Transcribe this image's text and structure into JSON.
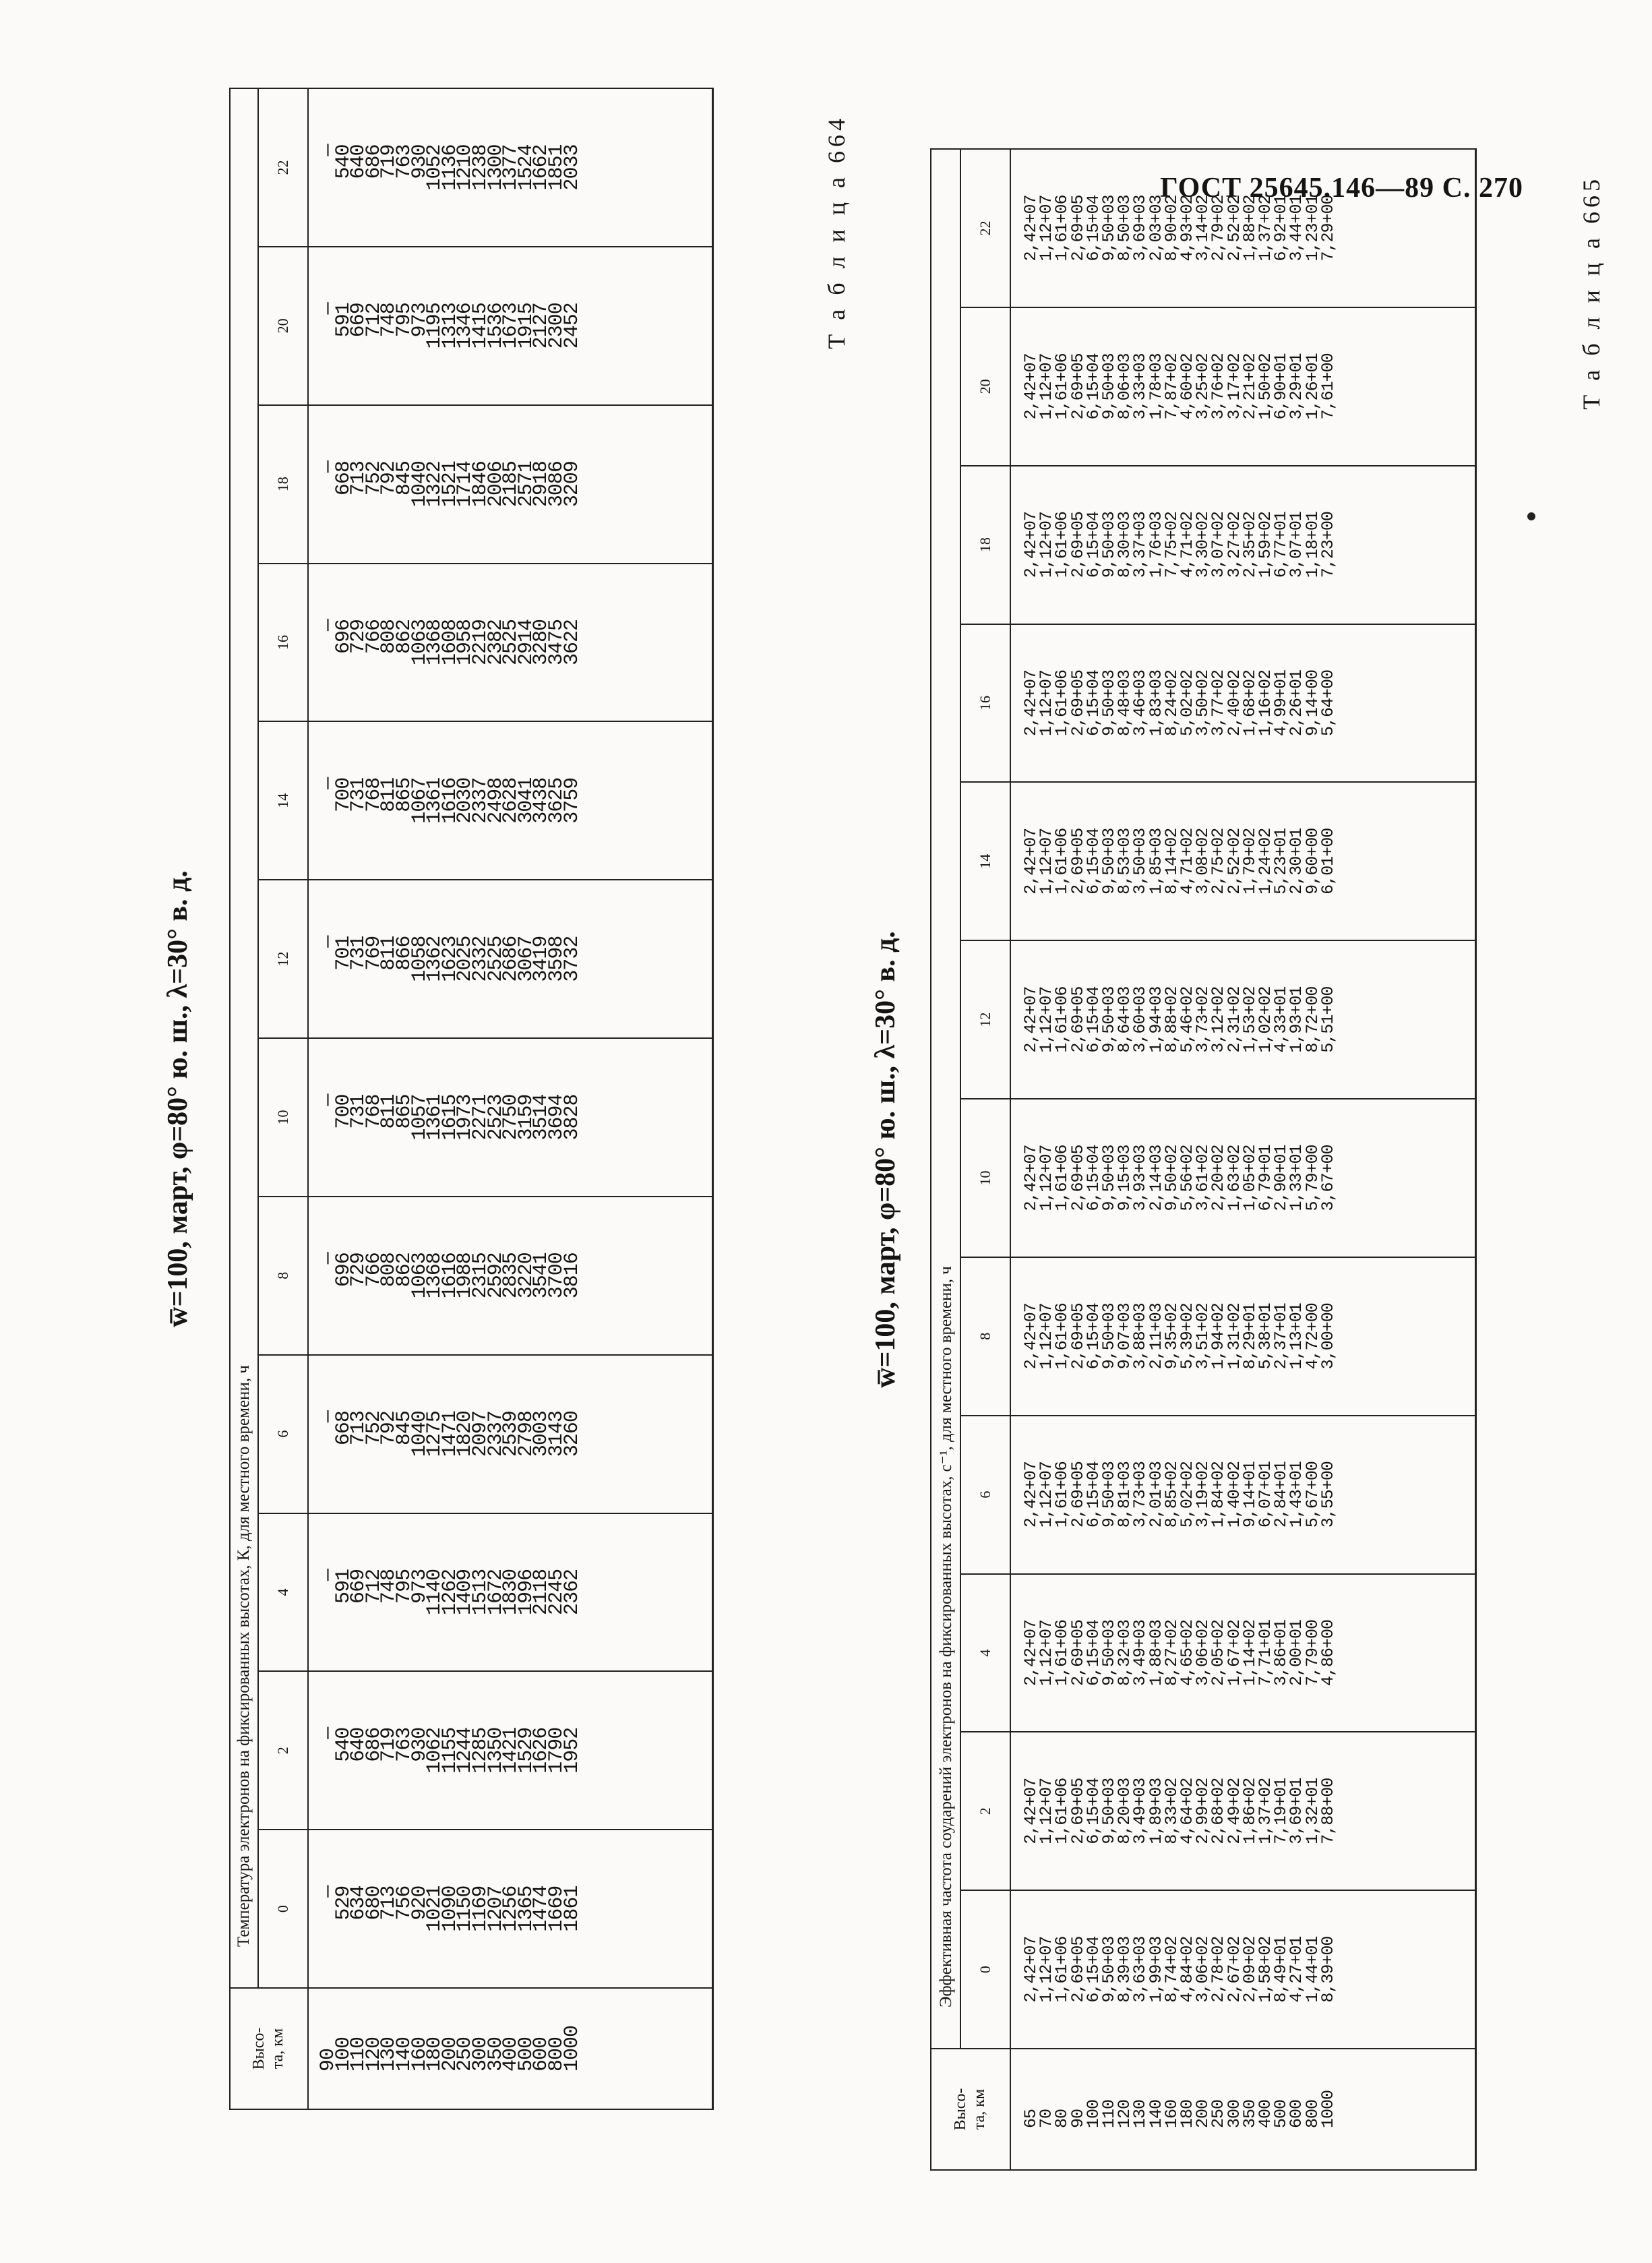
{
  "header": "ГОСТ 25645.146—89 С. 270",
  "table1": {
    "label": "Т а б л и ц а 664",
    "title": "w̅=100, март, φ=80° ю. ш., λ=30° в. д.",
    "alt_header": "Высо-\nта, км",
    "span_header": "Температура электронов на фиксированных высотах, К, для местного времени, ч",
    "hours": [
      "0",
      "2",
      "4",
      "6",
      "8",
      "10",
      "12",
      "14",
      "16",
      "18",
      "20",
      "22"
    ],
    "altitudes": [
      "90",
      "100",
      "110",
      "120",
      "130",
      "140",
      "160",
      "180",
      "200",
      "250",
      "300",
      "350",
      "400",
      "500",
      "600",
      "800",
      "1000"
    ],
    "columns": [
      [
        "—",
        "529",
        "634",
        "680",
        "713",
        "756",
        "920",
        "1021",
        "1090",
        "1150",
        "1169",
        "1207",
        "1256",
        "1365",
        "1474",
        "1669",
        "1861"
      ],
      [
        "—",
        "540",
        "640",
        "686",
        "719",
        "763",
        "930",
        "1062",
        "1155",
        "1244",
        "1285",
        "1350",
        "1421",
        "1529",
        "1626",
        "1790",
        "1952"
      ],
      [
        "—",
        "591",
        "669",
        "712",
        "748",
        "795",
        "973",
        "1140",
        "1262",
        "1409",
        "1513",
        "1672",
        "1830",
        "1996",
        "2118",
        "2245",
        "2362"
      ],
      [
        "—",
        "668",
        "713",
        "752",
        "792",
        "845",
        "1040",
        "1275",
        "1471",
        "1820",
        "2097",
        "2337",
        "2539",
        "2798",
        "3003",
        "3143",
        "3260"
      ],
      [
        "—",
        "696",
        "729",
        "766",
        "808",
        "862",
        "1063",
        "1368",
        "1616",
        "1988",
        "2315",
        "2592",
        "2835",
        "3220",
        "3541",
        "3700",
        "3816"
      ],
      [
        "—",
        "700",
        "731",
        "768",
        "811",
        "865",
        "1057",
        "1361",
        "1615",
        "1973",
        "2271",
        "2523",
        "2750",
        "3159",
        "3514",
        "3694",
        "3828"
      ],
      [
        "—",
        "701",
        "731",
        "769",
        "811",
        "866",
        "1058",
        "1362",
        "1623",
        "2025",
        "2332",
        "2525",
        "2686",
        "3067",
        "3419",
        "3598",
        "3732"
      ],
      [
        "—",
        "700",
        "731",
        "768",
        "811",
        "865",
        "1067",
        "1361",
        "1616",
        "2030",
        "2337",
        "2498",
        "2628",
        "3041",
        "3438",
        "3625",
        "3759"
      ],
      [
        "—",
        "696",
        "729",
        "766",
        "808",
        "862",
        "1063",
        "1368",
        "1608",
        "1958",
        "2219",
        "2382",
        "2525",
        "2914",
        "3280",
        "3475",
        "3622"
      ],
      [
        "—",
        "668",
        "713",
        "752",
        "792",
        "845",
        "1040",
        "1322",
        "1521",
        "1714",
        "1846",
        "2006",
        "2185",
        "2571",
        "2918",
        "3086",
        "3209"
      ],
      [
        "—",
        "591",
        "669",
        "712",
        "748",
        "795",
        "973",
        "1195",
        "1313",
        "1346",
        "1415",
        "1536",
        "1673",
        "1915",
        "2127",
        "2300",
        "2452"
      ],
      [
        "—",
        "540",
        "640",
        "686",
        "719",
        "763",
        "930",
        "1052",
        "1136",
        "1210",
        "1238",
        "1300",
        "1377",
        "1524",
        "1662",
        "1851",
        "2033"
      ]
    ]
  },
  "table2": {
    "label": "Т а б л и ц а 665",
    "title": "w̅=100, март, φ=80° ю. ш., λ=30° в. д.",
    "alt_header": "Высо-\nта, км",
    "span_header": "Эффективная частота соударений электронов на фиксированных высотах, с⁻¹, для местного времени, ч",
    "hours": [
      "0",
      "2",
      "4",
      "6",
      "8",
      "10",
      "12",
      "14",
      "16",
      "18",
      "20",
      "22"
    ],
    "altitudes": [
      "65",
      "70",
      "80",
      "90",
      "100",
      "110",
      "120",
      "130",
      "140",
      "160",
      "180",
      "200",
      "250",
      "300",
      "350",
      "400",
      "500",
      "600",
      "800",
      "1000"
    ],
    "columns": [
      [
        "2,42+07",
        "1,12+07",
        "1,61+06",
        "2,69+05",
        "6,15+04",
        "9,50+03",
        "8,39+03",
        "3,63+03",
        "1,99+03",
        "8,74+02",
        "4,84+02",
        "3,06+02",
        "2,78+02",
        "2,67+02",
        "2,09+02",
        "1,58+02",
        "8,49+01",
        "4,27+01",
        "1,44+01",
        "8,39+00"
      ],
      [
        "2,42+07",
        "1,12+07",
        "1,61+06",
        "2,69+05",
        "6,15+04",
        "9,50+03",
        "8,20+03",
        "3,49+03",
        "1,89+03",
        "8,33+02",
        "4,64+02",
        "2,99+02",
        "2,68+02",
        "2,49+02",
        "1,86+02",
        "1,37+02",
        "7,19+01",
        "3,69+01",
        "1,32+01",
        "7,88+00"
      ],
      [
        "2,42+07",
        "1,12+07",
        "1,61+06",
        "2,69+05",
        "6,15+04",
        "9,50+03",
        "8,32+03",
        "3,49+03",
        "1,88+03",
        "8,27+02",
        "4,65+02",
        "3,06+02",
        "2,05+02",
        "1,67+02",
        "1,14+02",
        "7,71+01",
        "3,86+01",
        "2,00+01",
        "7,79+00",
        "4,86+00"
      ],
      [
        "2,42+07",
        "1,12+07",
        "1,61+06",
        "2,69+05",
        "6,15+04",
        "9,50+03",
        "8,81+03",
        "3,73+03",
        "2,01+03",
        "8,85+02",
        "5,02+02",
        "3,19+02",
        "1,84+02",
        "1,40+02",
        "9,14+01",
        "6,07+01",
        "2,84+01",
        "1,43+01",
        "5,67+00",
        "3,55+00"
      ],
      [
        "2,42+07",
        "1,12+07",
        "1,61+06",
        "2,69+05",
        "6,15+04",
        "9,50+03",
        "9,07+03",
        "3,88+03",
        "2,11+03",
        "9,35+02",
        "5,39+02",
        "3,51+02",
        "1,94+02",
        "1,31+02",
        "8,29+01",
        "5,38+01",
        "2,37+01",
        "1,13+01",
        "4,72+00",
        "3,00+00"
      ],
      [
        "2,42+07",
        "1,12+07",
        "1,61+06",
        "2,69+05",
        "6,15+04",
        "9,50+03",
        "9,15+03",
        "3,93+03",
        "2,14+03",
        "9,50+02",
        "5,56+02",
        "3,61+02",
        "2,20+02",
        "1,63+02",
        "1,05+02",
        "6,79+01",
        "2,90+01",
        "1,33+01",
        "5,79+00",
        "3,67+00"
      ],
      [
        "2,42+07",
        "1,12+07",
        "1,61+06",
        "2,69+05",
        "6,15+04",
        "9,50+03",
        "8,64+03",
        "3,60+03",
        "1,94+03",
        "8,88+02",
        "5,46+02",
        "3,73+02",
        "3,12+02",
        "2,31+02",
        "1,53+02",
        "1,02+02",
        "4,33+01",
        "1,93+01",
        "8,72+00",
        "5,51+00"
      ],
      [
        "2,42+07",
        "1,12+07",
        "1,61+06",
        "2,69+05",
        "6,15+04",
        "9,50+03",
        "8,53+03",
        "3,50+03",
        "1,85+03",
        "8,14+02",
        "4,71+02",
        "3,08+02",
        "2,75+02",
        "2,52+02",
        "1,79+02",
        "1,24+02",
        "5,23+01",
        "2,30+01",
        "9,60+00",
        "6,01+00"
      ],
      [
        "2,42+07",
        "1,12+07",
        "1,61+06",
        "2,69+05",
        "6,15+04",
        "9,50+03",
        "8,48+03",
        "3,46+03",
        "1,83+03",
        "8,24+02",
        "5,02+02",
        "3,50+02",
        "3,77+02",
        "2,40+02",
        "1,68+02",
        "1,16+02",
        "4,99+01",
        "2,26+01",
        "9,14+00",
        "5,64+00"
      ],
      [
        "2,42+07",
        "1,12+07",
        "1,61+06",
        "2,69+05",
        "6,15+04",
        "9,50+03",
        "8,30+03",
        "3,37+03",
        "1,76+03",
        "7,75+02",
        "4,71+02",
        "3,30+02",
        "3,07+02",
        "3,27+02",
        "2,35+02",
        "1,59+02",
        "6,77+01",
        "3,07+01",
        "1,18+01",
        "7,23+00"
      ],
      [
        "2,42+07",
        "1,12+07",
        "1,61+06",
        "2,69+05",
        "6,15+04",
        "9,50+03",
        "8,06+03",
        "3,33+03",
        "1,78+03",
        "7,87+02",
        "4,60+02",
        "3,25+02",
        "3,76+02",
        "3,17+02",
        "2,21+02",
        "1,50+02",
        "6,90+01",
        "3,29+01",
        "1,26+01",
        "7,61+00"
      ],
      [
        "2,42+07",
        "1,12+07",
        "1,61+06",
        "2,69+05",
        "6,15+04",
        "9,50+03",
        "8,50+03",
        "3,69+03",
        "2,03+03",
        "8,90+02",
        "4,93+02",
        "3,14+02",
        "2,79+02",
        "2,52+02",
        "1,88+02",
        "1,37+02",
        "6,92+01",
        "3,44+01",
        "1,23+01",
        "7,29+00"
      ]
    ]
  }
}
